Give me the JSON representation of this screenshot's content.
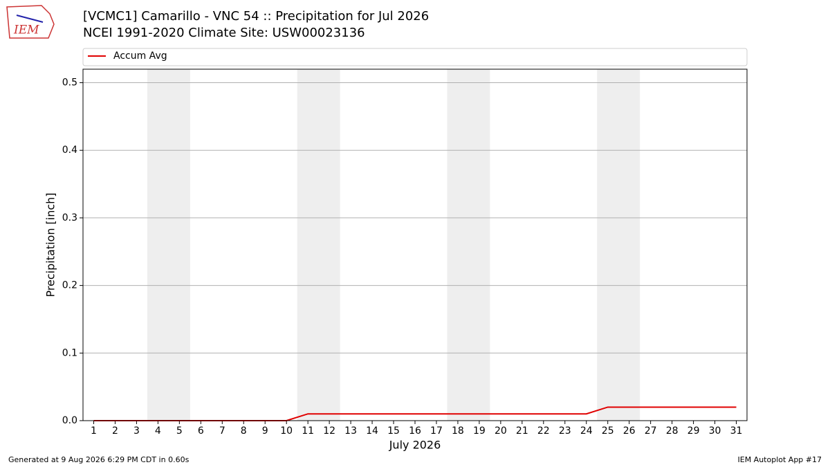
{
  "logo_text": "IEM",
  "footer_left": "Generated at 9 Aug 2026 6:29 PM CDT in 0.60s",
  "footer_right": "IEM Autoplot App #17",
  "chart_data": {
    "type": "line",
    "title": "[VCMC1] Camarillo - VNC 54 :: Precipitation for Jul 2026",
    "subtitle": "NCEI 1991-2020 Climate Site: USW00023136",
    "xlabel": "July 2026",
    "ylabel": "Precipitation [inch]",
    "x": [
      1,
      2,
      3,
      4,
      5,
      6,
      7,
      8,
      9,
      10,
      11,
      12,
      13,
      14,
      15,
      16,
      17,
      18,
      19,
      20,
      21,
      22,
      23,
      24,
      25,
      26,
      27,
      28,
      29,
      30,
      31
    ],
    "series": [
      {
        "name": "Accum Avg",
        "color": "#e00000",
        "values": [
          0,
          0,
          0,
          0,
          0,
          0,
          0,
          0,
          0,
          0,
          0.01,
          0.01,
          0.01,
          0.01,
          0.01,
          0.01,
          0.01,
          0.01,
          0.01,
          0.01,
          0.01,
          0.01,
          0.01,
          0.01,
          0.02,
          0.02,
          0.02,
          0.02,
          0.02,
          0.02,
          0.02
        ]
      }
    ],
    "shaded_spans": [
      [
        3.5,
        5.5
      ],
      [
        10.5,
        12.5
      ],
      [
        17.5,
        19.5
      ],
      [
        24.5,
        26.5
      ]
    ],
    "xlim": [
      0.5,
      31.5
    ],
    "xticks": [
      1,
      2,
      3,
      4,
      5,
      6,
      7,
      8,
      9,
      10,
      11,
      12,
      13,
      14,
      15,
      16,
      17,
      18,
      19,
      20,
      21,
      22,
      23,
      24,
      25,
      26,
      27,
      28,
      29,
      30,
      31
    ],
    "ylim": [
      0,
      0.52
    ],
    "yticks": [
      {
        "value": 0,
        "label": "0.0"
      },
      0.1,
      0.2,
      0.3,
      0.4,
      0.5
    ],
    "grid": true
  }
}
